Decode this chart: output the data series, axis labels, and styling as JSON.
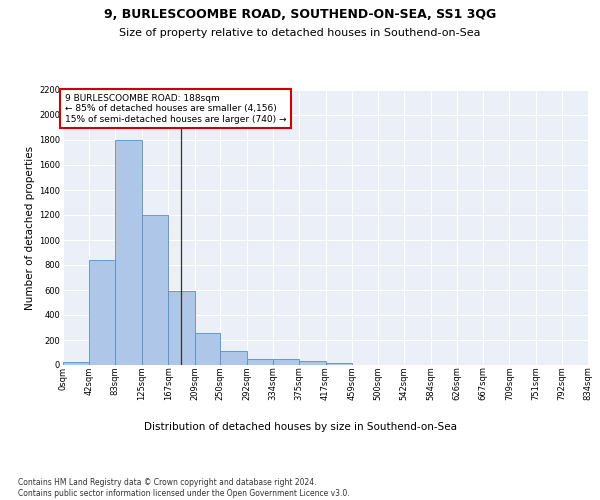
{
  "title": "9, BURLESCOOMBE ROAD, SOUTHEND-ON-SEA, SS1 3QG",
  "subtitle": "Size of property relative to detached houses in Southend-on-Sea",
  "xlabel": "Distribution of detached houses by size in Southend-on-Sea",
  "ylabel": "Number of detached properties",
  "footer_line1": "Contains HM Land Registry data © Crown copyright and database right 2024.",
  "footer_line2": "Contains public sector information licensed under the Open Government Licence v3.0.",
  "bin_labels": [
    "0sqm",
    "42sqm",
    "83sqm",
    "125sqm",
    "167sqm",
    "209sqm",
    "250sqm",
    "292sqm",
    "334sqm",
    "375sqm",
    "417sqm",
    "459sqm",
    "500sqm",
    "542sqm",
    "584sqm",
    "626sqm",
    "667sqm",
    "709sqm",
    "751sqm",
    "792sqm",
    "834sqm"
  ],
  "bar_heights": [
    25,
    840,
    1800,
    1200,
    590,
    260,
    115,
    50,
    48,
    32,
    20,
    0,
    0,
    0,
    0,
    0,
    0,
    0,
    0,
    0,
    0
  ],
  "bar_color": "#aec6e8",
  "bar_edge_color": "#5a8fc2",
  "annotation_title": "9 BURLESCOOMBE ROAD: 188sqm",
  "annotation_line1": "← 85% of detached houses are smaller (4,156)",
  "annotation_line2": "15% of semi-detached houses are larger (740) →",
  "annotation_box_color": "#ffffff",
  "annotation_border_color": "#cc0000",
  "vline_color": "#333333",
  "ylim": [
    0,
    2200
  ],
  "yticks": [
    0,
    200,
    400,
    600,
    800,
    1000,
    1200,
    1400,
    1600,
    1800,
    2000,
    2200
  ],
  "background_color": "#eaeff8",
  "grid_color": "#ffffff",
  "title_fontsize": 9,
  "subtitle_fontsize": 8,
  "axis_label_fontsize": 7.5,
  "ylabel_fontsize": 7.5,
  "tick_fontsize": 6,
  "annotation_fontsize": 6.5,
  "footer_fontsize": 5.5
}
